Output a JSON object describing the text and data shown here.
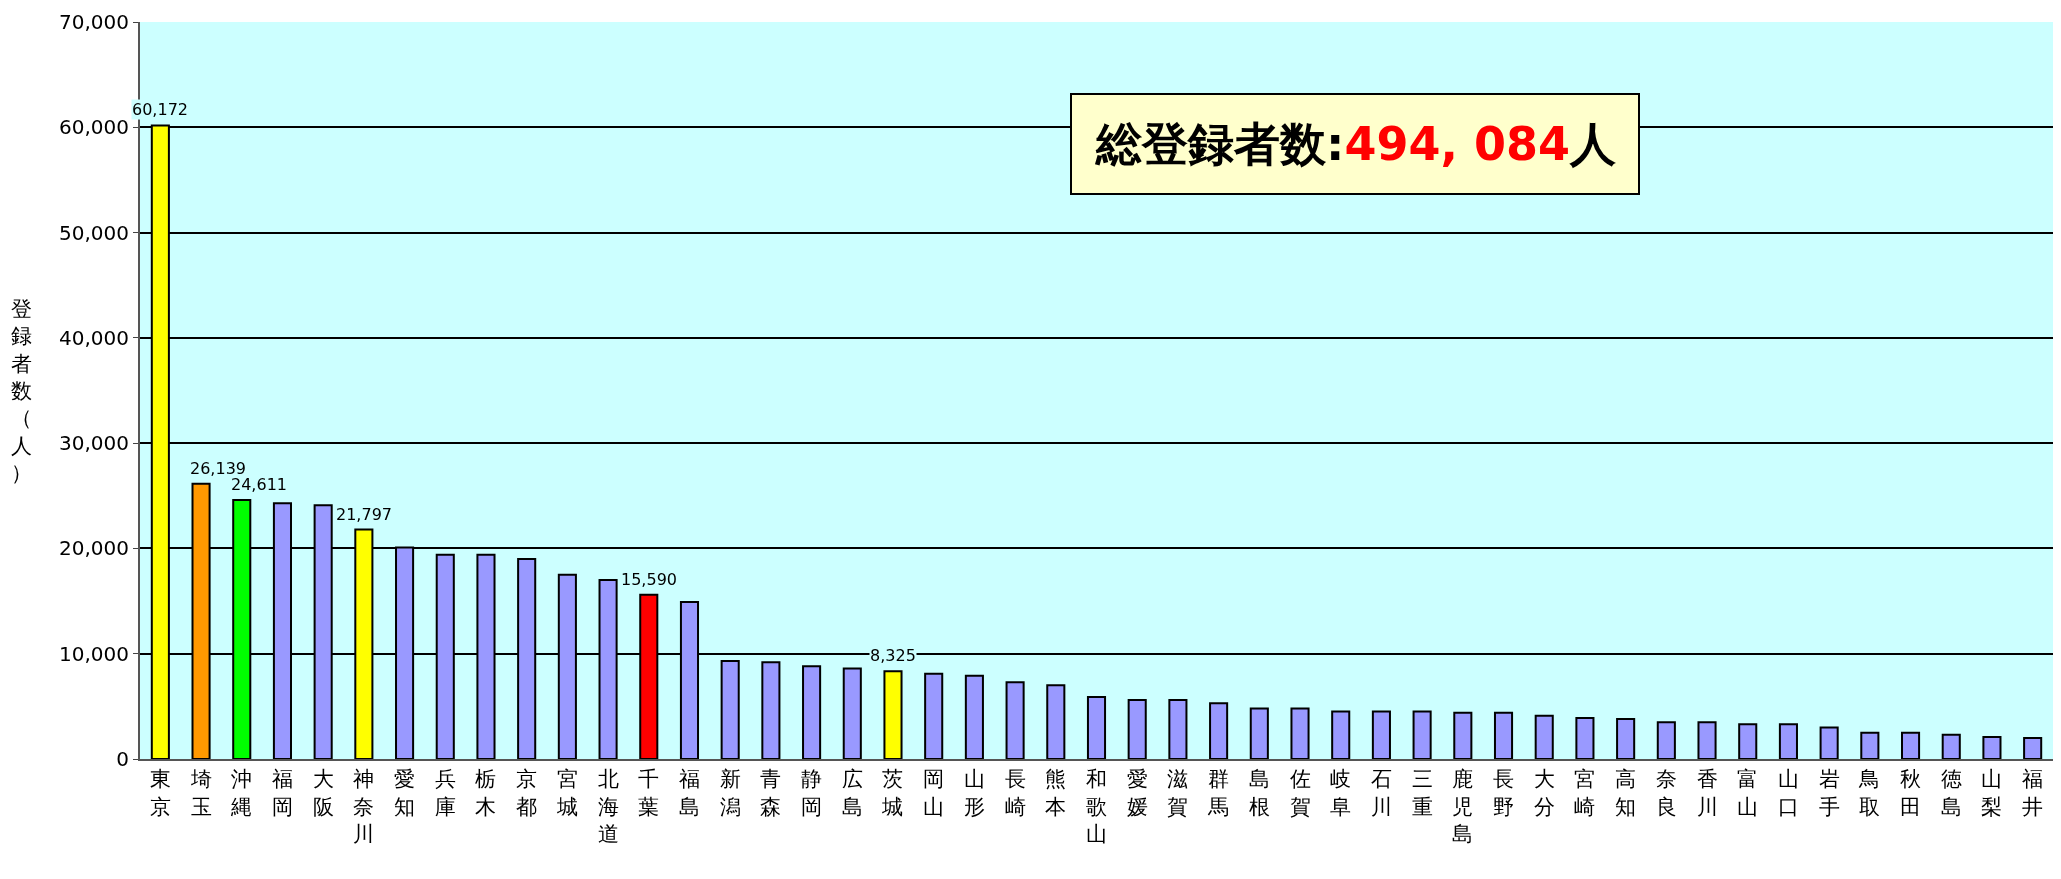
{
  "chart_data": {
    "type": "bar",
    "ylabel": "登録者数（人）",
    "categories": [
      "東京",
      "埼玉",
      "沖縄",
      "福岡",
      "大阪",
      "神奈川",
      "愛知",
      "兵庫",
      "栃木",
      "京都",
      "宮城",
      "北海道",
      "千葉",
      "福島",
      "新潟",
      "青森",
      "静岡",
      "広島",
      "茨城",
      "岡山",
      "山形",
      "長崎",
      "熊本",
      "和歌山",
      "愛媛",
      "滋賀",
      "群馬",
      "島根",
      "佐賀",
      "岐阜",
      "石川",
      "三重",
      "鹿児島",
      "長野",
      "大分",
      "宮崎",
      "高知",
      "奈良",
      "香川",
      "富山",
      "山口",
      "岩手",
      "鳥取",
      "秋田",
      "徳島",
      "山梨",
      "福井"
    ],
    "values": [
      60172,
      26139,
      24611,
      24300,
      24100,
      21797,
      20100,
      19400,
      19400,
      19000,
      17500,
      17000,
      15590,
      14900,
      9300,
      9200,
      8800,
      8600,
      8325,
      8100,
      7900,
      7300,
      7000,
      5900,
      5600,
      5600,
      5300,
      4800,
      4800,
      4500,
      4500,
      4500,
      4400,
      4400,
      4100,
      3900,
      3800,
      3500,
      3500,
      3300,
      3300,
      3000,
      2500,
      2500,
      2300,
      2100,
      2000
    ],
    "value_labels": [
      "60,172",
      "26,139",
      "24,611",
      null,
      null,
      "21,797",
      null,
      null,
      null,
      null,
      null,
      null,
      "15,590",
      null,
      null,
      null,
      null,
      null,
      "8,325",
      null,
      null,
      null,
      null,
      null,
      null,
      null,
      null,
      null,
      null,
      null,
      null,
      null,
      null,
      null,
      null,
      null,
      null,
      null,
      null,
      null,
      null,
      null,
      null,
      null,
      null,
      null,
      null
    ],
    "colors": [
      "#ffff00",
      "#ff9900",
      "#00ff00",
      "#9999ff",
      "#9999ff",
      "#ffff00",
      "#9999ff",
      "#9999ff",
      "#9999ff",
      "#9999ff",
      "#9999ff",
      "#9999ff",
      "#ff0000",
      "#9999ff",
      "#9999ff",
      "#9999ff",
      "#9999ff",
      "#9999ff",
      "#ffff00",
      "#9999ff",
      "#9999ff",
      "#9999ff",
      "#9999ff",
      "#9999ff",
      "#9999ff",
      "#9999ff",
      "#9999ff",
      "#9999ff",
      "#9999ff",
      "#9999ff",
      "#9999ff",
      "#9999ff",
      "#9999ff",
      "#9999ff",
      "#9999ff",
      "#9999ff",
      "#9999ff",
      "#9999ff",
      "#9999ff",
      "#9999ff",
      "#9999ff",
      "#9999ff",
      "#9999ff",
      "#9999ff",
      "#9999ff",
      "#9999ff",
      "#9999ff"
    ],
    "ylim": [
      0,
      70000
    ],
    "yticks": [
      {
        "value": 0,
        "label": "0"
      },
      {
        "value": 10000,
        "label": "10,000"
      },
      {
        "value": 20000,
        "label": "20,000"
      },
      {
        "value": 30000,
        "label": "30,000"
      },
      {
        "value": 40000,
        "label": "40,000"
      },
      {
        "value": 50000,
        "label": "50,000"
      },
      {
        "value": 60000,
        "label": "60,000"
      },
      {
        "value": 70000,
        "label": "70,000"
      }
    ],
    "grid": "y",
    "legend": false,
    "annotations": [
      "総登録者数:494, 084人"
    ]
  }
}
